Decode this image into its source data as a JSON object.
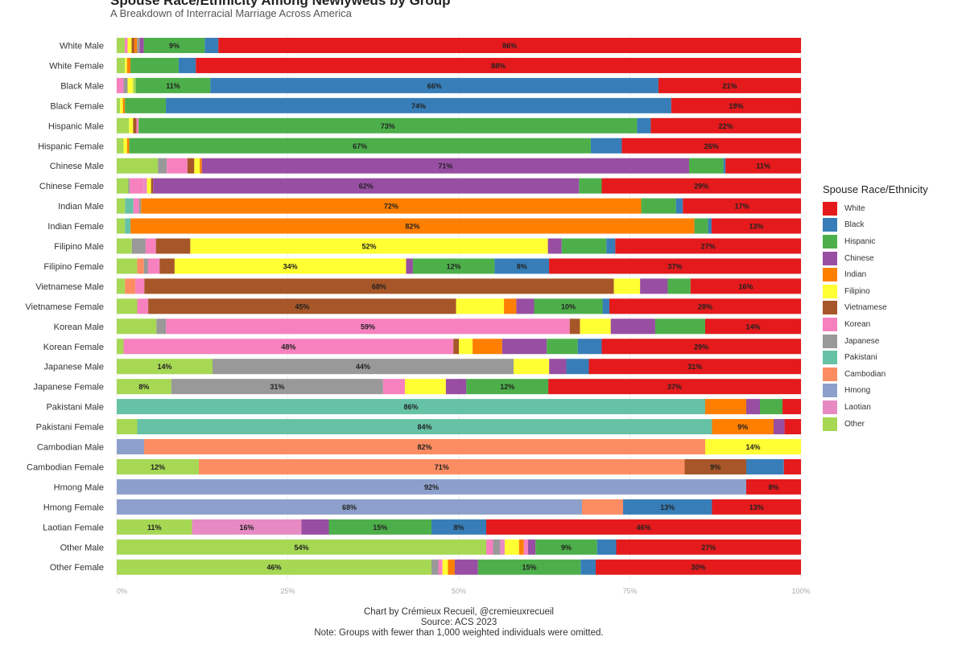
{
  "header": {
    "title": "Spouse Race/Ethnicity Among Newlyweds by Group",
    "subtitle": "A Breakdown of Interracial Marriage Across America"
  },
  "legend": {
    "title": "Spouse Race/Ethnicity"
  },
  "caption": {
    "line1": "Chart by Crémieux Recueil, @cremieuxrecueil",
    "line2": "Source: ACS 2023",
    "line3": "Note: Groups with fewer than 1,000 weighted individuals were omitted."
  },
  "chart_data": {
    "type": "bar",
    "orientation": "horizontal",
    "stacked": true,
    "title": "Spouse Race/Ethnicity Among Newlyweds by Group",
    "subtitle": "A Breakdown of Interracial Marriage Across America",
    "xlim": [
      0,
      100
    ],
    "x_ticks": [
      "0%",
      "25%",
      "50%",
      "75%",
      "100%"
    ],
    "legend_position": "right",
    "spouse_groups": [
      "White",
      "Black",
      "Hispanic",
      "Chinese",
      "Indian",
      "Filipino",
      "Vietnamese",
      "Korean",
      "Japanese",
      "Pakistani",
      "Cambodian",
      "Hmong",
      "Laotian",
      "Other"
    ],
    "colors": {
      "White": "#e41a1c",
      "Black": "#377eb8",
      "Hispanic": "#4daf4a",
      "Chinese": "#984ea3",
      "Indian": "#ff7f00",
      "Filipino": "#ffff33",
      "Vietnamese": "#a65628",
      "Korean": "#f781bf",
      "Japanese": "#999999",
      "Pakistani": "#66c2a5",
      "Cambodian": "#fc8d62",
      "Hmong": "#8da0cb",
      "Laotian": "#e78ac3",
      "Other": "#a6d854"
    },
    "label_threshold": 8,
    "categories": [
      "White Male",
      "White Female",
      "Black Male",
      "Black Female",
      "Hispanic Male",
      "Hispanic Female",
      "Chinese Male",
      "Chinese Female",
      "Indian Male",
      "Indian Female",
      "Filipino Male",
      "Filipino Female",
      "Vietnamese Male",
      "Vietnamese Female",
      "Korean Male",
      "Korean Female",
      "Japanese Male",
      "Japanese Female",
      "Pakistani Male",
      "Pakistani Female",
      "Cambodian Male",
      "Cambodian Female",
      "Hmong Male",
      "Hmong Female",
      "Laotian Female",
      "Other Male",
      "Other Female"
    ],
    "rows": [
      {
        "group": "White Male",
        "segments": [
          [
            "Other",
            1.2
          ],
          [
            "Korean",
            0.4
          ],
          [
            "Filipino",
            0.6
          ],
          [
            "Vietnamese",
            0.4
          ],
          [
            "Indian",
            0.4
          ],
          [
            "Japanese",
            0.4
          ],
          [
            "Chinese",
            0.6
          ],
          [
            "Hispanic",
            9
          ],
          [
            "Black",
            2
          ],
          [
            "White",
            86
          ]
        ]
      },
      {
        "group": "White Female",
        "segments": [
          [
            "Other",
            1.2
          ],
          [
            "Filipino",
            0.3
          ],
          [
            "Indian",
            0.5
          ],
          [
            "Hispanic",
            7
          ],
          [
            "Black",
            2.5
          ],
          [
            "White",
            88
          ]
        ]
      },
      {
        "group": "Black Male",
        "segments": [
          [
            "Korean",
            1
          ],
          [
            "Japanese",
            0.6
          ],
          [
            "Filipino",
            0.8
          ],
          [
            "Other",
            0.4
          ],
          [
            "Hispanic",
            11
          ],
          [
            "Black",
            66
          ],
          [
            "White",
            21
          ]
        ]
      },
      {
        "group": "Black Female",
        "segments": [
          [
            "Other",
            0.5
          ],
          [
            "Filipino",
            0.4
          ],
          [
            "Indian",
            0.3
          ],
          [
            "Hispanic",
            6
          ],
          [
            "Black",
            74
          ],
          [
            "White",
            19
          ]
        ]
      },
      {
        "group": "Hispanic Male",
        "segments": [
          [
            "Other",
            1.8
          ],
          [
            "Filipino",
            0.6
          ],
          [
            "Vietnamese",
            0.5
          ],
          [
            "Korean",
            0.3
          ],
          [
            "Hispanic",
            73
          ],
          [
            "Black",
            2
          ],
          [
            "White",
            22
          ]
        ]
      },
      {
        "group": "Hispanic Female",
        "segments": [
          [
            "Other",
            1
          ],
          [
            "Filipino",
            0.5
          ],
          [
            "Indian",
            0.3
          ],
          [
            "Hispanic",
            67
          ],
          [
            "Black",
            4.5
          ],
          [
            "White",
            26
          ]
        ]
      },
      {
        "group": "Chinese Male",
        "segments": [
          [
            "Other",
            6
          ],
          [
            "Japanese",
            1.3
          ],
          [
            "Korean",
            3
          ],
          [
            "Vietnamese",
            1
          ],
          [
            "Filipino",
            0.8
          ],
          [
            "Indian",
            0.3
          ],
          [
            "Chinese",
            71
          ],
          [
            "Hispanic",
            5
          ],
          [
            "Black",
            0.3
          ],
          [
            "White",
            11
          ]
        ]
      },
      {
        "group": "Chinese Female",
        "segments": [
          [
            "Other",
            1.7
          ],
          [
            "Japanese",
            0.2
          ],
          [
            "Korean",
            2
          ],
          [
            "Laotian",
            0.5
          ],
          [
            "Filipino",
            0.6
          ],
          [
            "Vietnamese",
            0.3
          ],
          [
            "Chinese",
            62
          ],
          [
            "Hispanic",
            3.3
          ],
          [
            "White",
            29
          ]
        ]
      },
      {
        "group": "Indian Male",
        "segments": [
          [
            "Other",
            1.2
          ],
          [
            "Pakistani",
            1.2
          ],
          [
            "Korean",
            0.8
          ],
          [
            "Japanese",
            0.3
          ],
          [
            "Indian",
            72
          ],
          [
            "Hispanic",
            5
          ],
          [
            "Black",
            1
          ],
          [
            "White",
            17
          ]
        ]
      },
      {
        "group": "Indian Female",
        "segments": [
          [
            "Other",
            1.2
          ],
          [
            "Pakistani",
            0.8
          ],
          [
            "Indian",
            82
          ],
          [
            "Hispanic",
            2
          ],
          [
            "Black",
            0.5
          ],
          [
            "White",
            13
          ]
        ]
      },
      {
        "group": "Filipino Male",
        "segments": [
          [
            "Other",
            2.2
          ],
          [
            "Japanese",
            2
          ],
          [
            "Korean",
            1.5
          ],
          [
            "Vietnamese",
            5
          ],
          [
            "Filipino",
            52
          ],
          [
            "Chinese",
            2
          ],
          [
            "Hispanic",
            6.5
          ],
          [
            "Black",
            1.3
          ],
          [
            "White",
            27
          ]
        ]
      },
      {
        "group": "Filipino Female",
        "segments": [
          [
            "Other",
            3
          ],
          [
            "Cambodian",
            1
          ],
          [
            "Japanese",
            0.6
          ],
          [
            "Korean",
            1.7
          ],
          [
            "Vietnamese",
            2.2
          ],
          [
            "Filipino",
            34
          ],
          [
            "Chinese",
            1
          ],
          [
            "Hispanic",
            12
          ],
          [
            "Black",
            8
          ],
          [
            "White",
            37
          ]
        ]
      },
      {
        "group": "Vietnamese Male",
        "segments": [
          [
            "Other",
            1.2
          ],
          [
            "Cambodian",
            1.5
          ],
          [
            "Korean",
            1.3
          ],
          [
            "Vietnamese",
            68
          ],
          [
            "Filipino",
            3.8
          ],
          [
            "Chinese",
            4
          ],
          [
            "Hispanic",
            3.3
          ],
          [
            "White",
            16
          ]
        ]
      },
      {
        "group": "Vietnamese Female",
        "segments": [
          [
            "Other",
            3
          ],
          [
            "Korean",
            1.6
          ],
          [
            "Vietnamese",
            45
          ],
          [
            "Filipino",
            7
          ],
          [
            "Indian",
            1.8
          ],
          [
            "Chinese",
            2.6
          ],
          [
            "Hispanic",
            10
          ],
          [
            "Black",
            1
          ],
          [
            "White",
            28
          ]
        ]
      },
      {
        "group": "Korean Male",
        "segments": [
          [
            "Other",
            5.8
          ],
          [
            "Japanese",
            1.4
          ],
          [
            "Korean",
            59
          ],
          [
            "Vietnamese",
            1.5
          ],
          [
            "Filipino",
            4.5
          ],
          [
            "Chinese",
            6.5
          ],
          [
            "Hispanic",
            7.3
          ],
          [
            "White",
            14
          ]
        ]
      },
      {
        "group": "Korean Female",
        "segments": [
          [
            "Other",
            1
          ],
          [
            "Korean",
            48
          ],
          [
            "Vietnamese",
            0.8
          ],
          [
            "Filipino",
            2
          ],
          [
            "Indian",
            4.3
          ],
          [
            "Chinese",
            6.5
          ],
          [
            "Hispanic",
            4.5
          ],
          [
            "Black",
            3.5
          ],
          [
            "White",
            29
          ]
        ]
      },
      {
        "group": "Japanese Male",
        "segments": [
          [
            "Other",
            14
          ],
          [
            "Japanese",
            44
          ],
          [
            "Filipino",
            5.2
          ],
          [
            "Chinese",
            2.5
          ],
          [
            "Black",
            3.3
          ],
          [
            "White",
            31
          ]
        ]
      },
      {
        "group": "Japanese Female",
        "segments": [
          [
            "Other",
            8
          ],
          [
            "Japanese",
            31
          ],
          [
            "Korean",
            3.2
          ],
          [
            "Filipino",
            6
          ],
          [
            "Chinese",
            3
          ],
          [
            "Hispanic",
            12
          ],
          [
            "White",
            37
          ]
        ]
      },
      {
        "group": "Pakistani Male",
        "segments": [
          [
            "Pakistani",
            86
          ],
          [
            "Indian",
            6
          ],
          [
            "Chinese",
            2
          ],
          [
            "Hispanic",
            3.3
          ],
          [
            "White",
            2.7
          ]
        ]
      },
      {
        "group": "Pakistani Female",
        "segments": [
          [
            "Other",
            3
          ],
          [
            "Pakistani",
            84
          ],
          [
            "Indian",
            9
          ],
          [
            "Chinese",
            1.6
          ],
          [
            "White",
            2.4
          ]
        ]
      },
      {
        "group": "Cambodian Male",
        "segments": [
          [
            "Hmong",
            4
          ],
          [
            "Cambodian",
            82
          ],
          [
            "Filipino",
            14
          ]
        ]
      },
      {
        "group": "Cambodian Female",
        "segments": [
          [
            "Other",
            12
          ],
          [
            "Cambodian",
            71
          ],
          [
            "Vietnamese",
            9
          ],
          [
            "Black",
            5.5
          ],
          [
            "White",
            2.5
          ]
        ]
      },
      {
        "group": "Hmong Male",
        "segments": [
          [
            "Hmong",
            92
          ],
          [
            "White",
            8
          ]
        ]
      },
      {
        "group": "Hmong Female",
        "segments": [
          [
            "Hmong",
            68
          ],
          [
            "Cambodian",
            6
          ],
          [
            "Black",
            13
          ],
          [
            "White",
            13
          ]
        ]
      },
      {
        "group": "Laotian Female",
        "segments": [
          [
            "Other",
            11
          ],
          [
            "Laotian",
            16
          ],
          [
            "Chinese",
            4
          ],
          [
            "Hispanic",
            15
          ],
          [
            "Black",
            8
          ],
          [
            "White",
            46
          ]
        ]
      },
      {
        "group": "Other Male",
        "segments": [
          [
            "Other",
            54
          ],
          [
            "Korean",
            1
          ],
          [
            "Japanese",
            1
          ],
          [
            "Laotian",
            0.7
          ],
          [
            "Filipino",
            2.1
          ],
          [
            "Indian",
            0.7
          ],
          [
            "Korean",
            0.6
          ],
          [
            "Chinese",
            1.1
          ],
          [
            "Hispanic",
            9
          ],
          [
            "Black",
            2.8
          ],
          [
            "White",
            27
          ]
        ]
      },
      {
        "group": "Other Female",
        "segments": [
          [
            "Other",
            46
          ],
          [
            "Japanese",
            1
          ],
          [
            "Korean",
            0.6
          ],
          [
            "Filipino",
            0.8
          ],
          [
            "Indian",
            1
          ],
          [
            "Chinese",
            3.4
          ],
          [
            "Hispanic",
            15
          ],
          [
            "Black",
            2.2
          ],
          [
            "White",
            30
          ]
        ]
      }
    ]
  }
}
